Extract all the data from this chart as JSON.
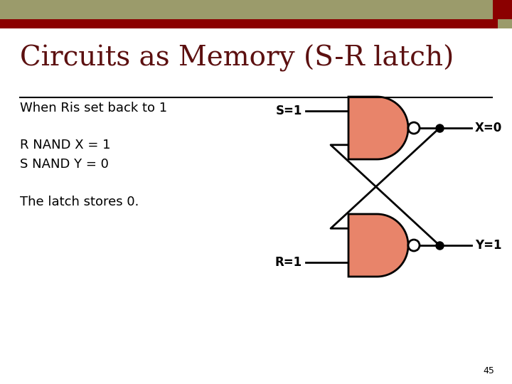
{
  "title": "Circuits as Memory (S-R latch)",
  "subtitle": "When Ris set back to 1",
  "line1": "R NAND X = 1",
  "line2": "S NAND Y = 0",
  "line3": "The latch stores 0.",
  "page_number": "45",
  "header_bar_color": "#9B9B6B",
  "header_accent_color": "#8B0000",
  "title_color": "#5C1010",
  "text_color": "#000000",
  "gate_fill": "#E8846A",
  "gate_edge": "#000000",
  "bg_color": "#FFFFFF",
  "label_S": "S=1",
  "label_R": "R=1",
  "label_X": "X=0",
  "label_Y": "Y=1"
}
